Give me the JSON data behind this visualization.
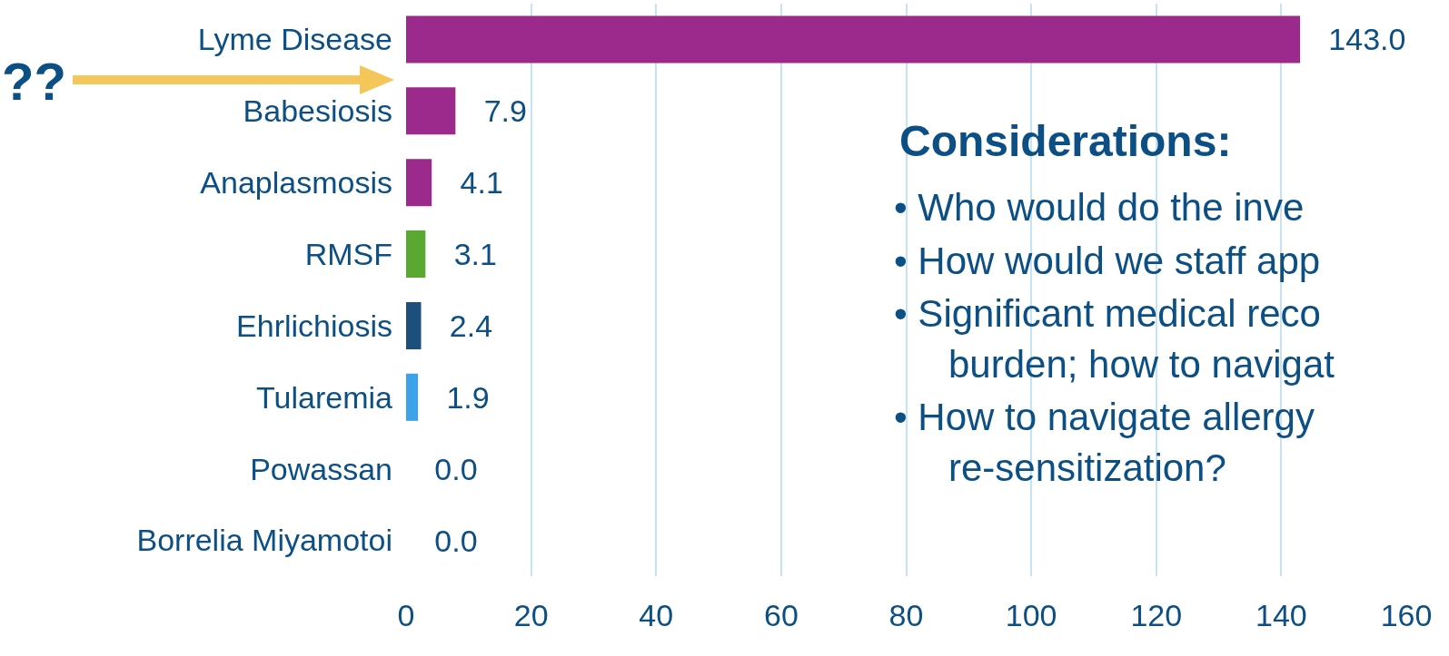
{
  "chart_data": {
    "type": "bar",
    "orientation": "horizontal",
    "categories": [
      "Lyme Disease",
      "Babesiosis",
      "Anaplasmosis",
      "RMSF",
      "Ehrlichiosis",
      "Tularemia",
      "Powassan",
      "Borrelia Miyamotoi"
    ],
    "values": [
      143.0,
      7.9,
      4.1,
      3.1,
      2.4,
      1.9,
      0.0,
      0.0
    ],
    "value_labels": [
      "143.0",
      "7.9",
      "4.1",
      "3.1",
      "2.4",
      "1.9",
      "0.0",
      "0.0"
    ],
    "colors": [
      "#9c2a8d",
      "#9c2a8d",
      "#9c2a8d",
      "#5aa832",
      "#1c4f7c",
      "#3ea2ea",
      "#9c2a8d",
      "#9c2a8d"
    ],
    "xlim": [
      0,
      160
    ],
    "xticks": [
      0,
      20,
      40,
      60,
      80,
      100,
      120,
      140,
      160
    ],
    "grid": "x",
    "annotations": [
      "??",
      "Considerations:",
      "• Who would do the inve",
      "• How would we staff app",
      "• Significant medical reco",
      "burden; how to navigat",
      "• How to navigate allergy",
      "re-sensitization?"
    ]
  }
}
